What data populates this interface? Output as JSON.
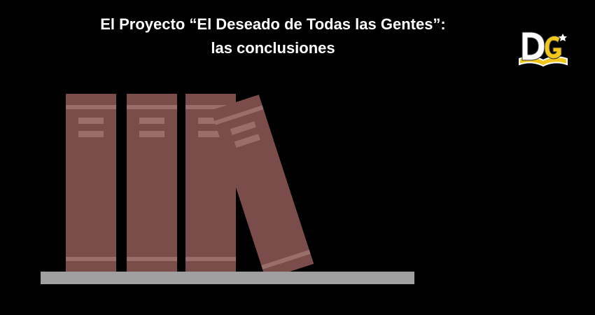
{
  "header": {
    "title_line1": "El Proyecto “El Deseado de Todas las Gentes”:",
    "title_line2": "las conclusiones"
  },
  "logo": {
    "name": "deseado-logo",
    "text": "DG"
  },
  "colors": {
    "background": "#000000",
    "book": "#7a4d4a",
    "book_band": "#9a6f6b",
    "shelf": "#a0a0a0",
    "logo_yellow": "#f2c61b",
    "logo_white": "#ffffff"
  }
}
